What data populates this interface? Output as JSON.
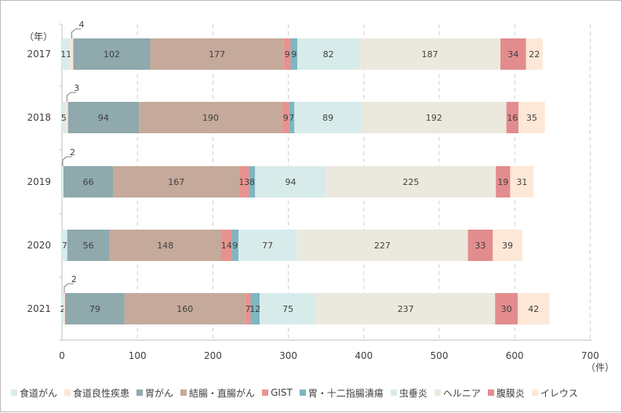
{
  "chart_data": {
    "type": "bar",
    "orientation": "horizontal",
    "stacked": true,
    "title": "",
    "ylabel": "（年）",
    "xlabel": "（件）",
    "xlim": [
      0,
      700
    ],
    "xticks": [
      0,
      100,
      200,
      300,
      400,
      500,
      600,
      700
    ],
    "grid": "vertical dashed",
    "legend_position": "bottom",
    "categories": [
      "2017",
      "2018",
      "2019",
      "2020",
      "2021"
    ],
    "series": [
      {
        "name": "食道がん",
        "color": "#d9ecec",
        "values": [
          11,
          5,
          2,
          7,
          2
        ],
        "labels": [
          "11",
          "5",
          "",
          "7",
          "2"
        ]
      },
      {
        "name": "食道良性疾患",
        "color": "#fbe5d6",
        "values": [
          4,
          3,
          0,
          0,
          2
        ],
        "labels": [
          "",
          "",
          "",
          "",
          ""
        ]
      },
      {
        "name": "胃がん",
        "color": "#8fa9ad",
        "values": [
          102,
          94,
          66,
          56,
          79
        ],
        "labels": [
          "102",
          "94",
          "66",
          "56",
          "79"
        ]
      },
      {
        "name": "結腸・直腸がん",
        "color": "#c5a99a",
        "values": [
          177,
          190,
          167,
          148,
          160
        ],
        "labels": [
          "177",
          "190",
          "167",
          "148",
          "160"
        ]
      },
      {
        "name": "GIST",
        "color": "#e8928f",
        "values": [
          9,
          9,
          13,
          14,
          7
        ],
        "labels": [
          "9",
          "9",
          "13",
          "14",
          "7"
        ]
      },
      {
        "name": "胃・十二指腸潰瘍",
        "color": "#7fb6c0",
        "values": [
          9,
          7,
          8,
          9,
          12
        ],
        "labels": [
          "9",
          "7",
          "8",
          "9",
          "12"
        ]
      },
      {
        "name": "虫垂炎",
        "color": "#d8ebeb",
        "values": [
          82,
          89,
          94,
          77,
          75
        ],
        "labels": [
          "82",
          "89",
          "94",
          "77",
          "75"
        ]
      },
      {
        "name": "ヘルニア",
        "color": "#ebe9dd",
        "values": [
          187,
          192,
          225,
          227,
          237
        ],
        "labels": [
          "187",
          "192",
          "225",
          "227",
          "237"
        ]
      },
      {
        "name": "腹膜炎",
        "color": "#e28c8e",
        "values": [
          34,
          16,
          19,
          33,
          30
        ],
        "labels": [
          "34",
          "16",
          "19",
          "33",
          "30"
        ]
      },
      {
        "name": "イレウス",
        "color": "#fde8d7",
        "values": [
          22,
          35,
          31,
          39,
          42
        ],
        "labels": [
          "22",
          "35",
          "31",
          "39",
          "42"
        ]
      }
    ],
    "callouts": [
      {
        "category": "2017",
        "series": "食道良性疾患",
        "text": "4"
      },
      {
        "category": "2018",
        "series": "食道良性疾患",
        "text": "3"
      },
      {
        "category": "2019",
        "series": "食道がん",
        "text": "2"
      },
      {
        "category": "2021",
        "series": "食道良性疾患",
        "text": "2"
      }
    ]
  }
}
